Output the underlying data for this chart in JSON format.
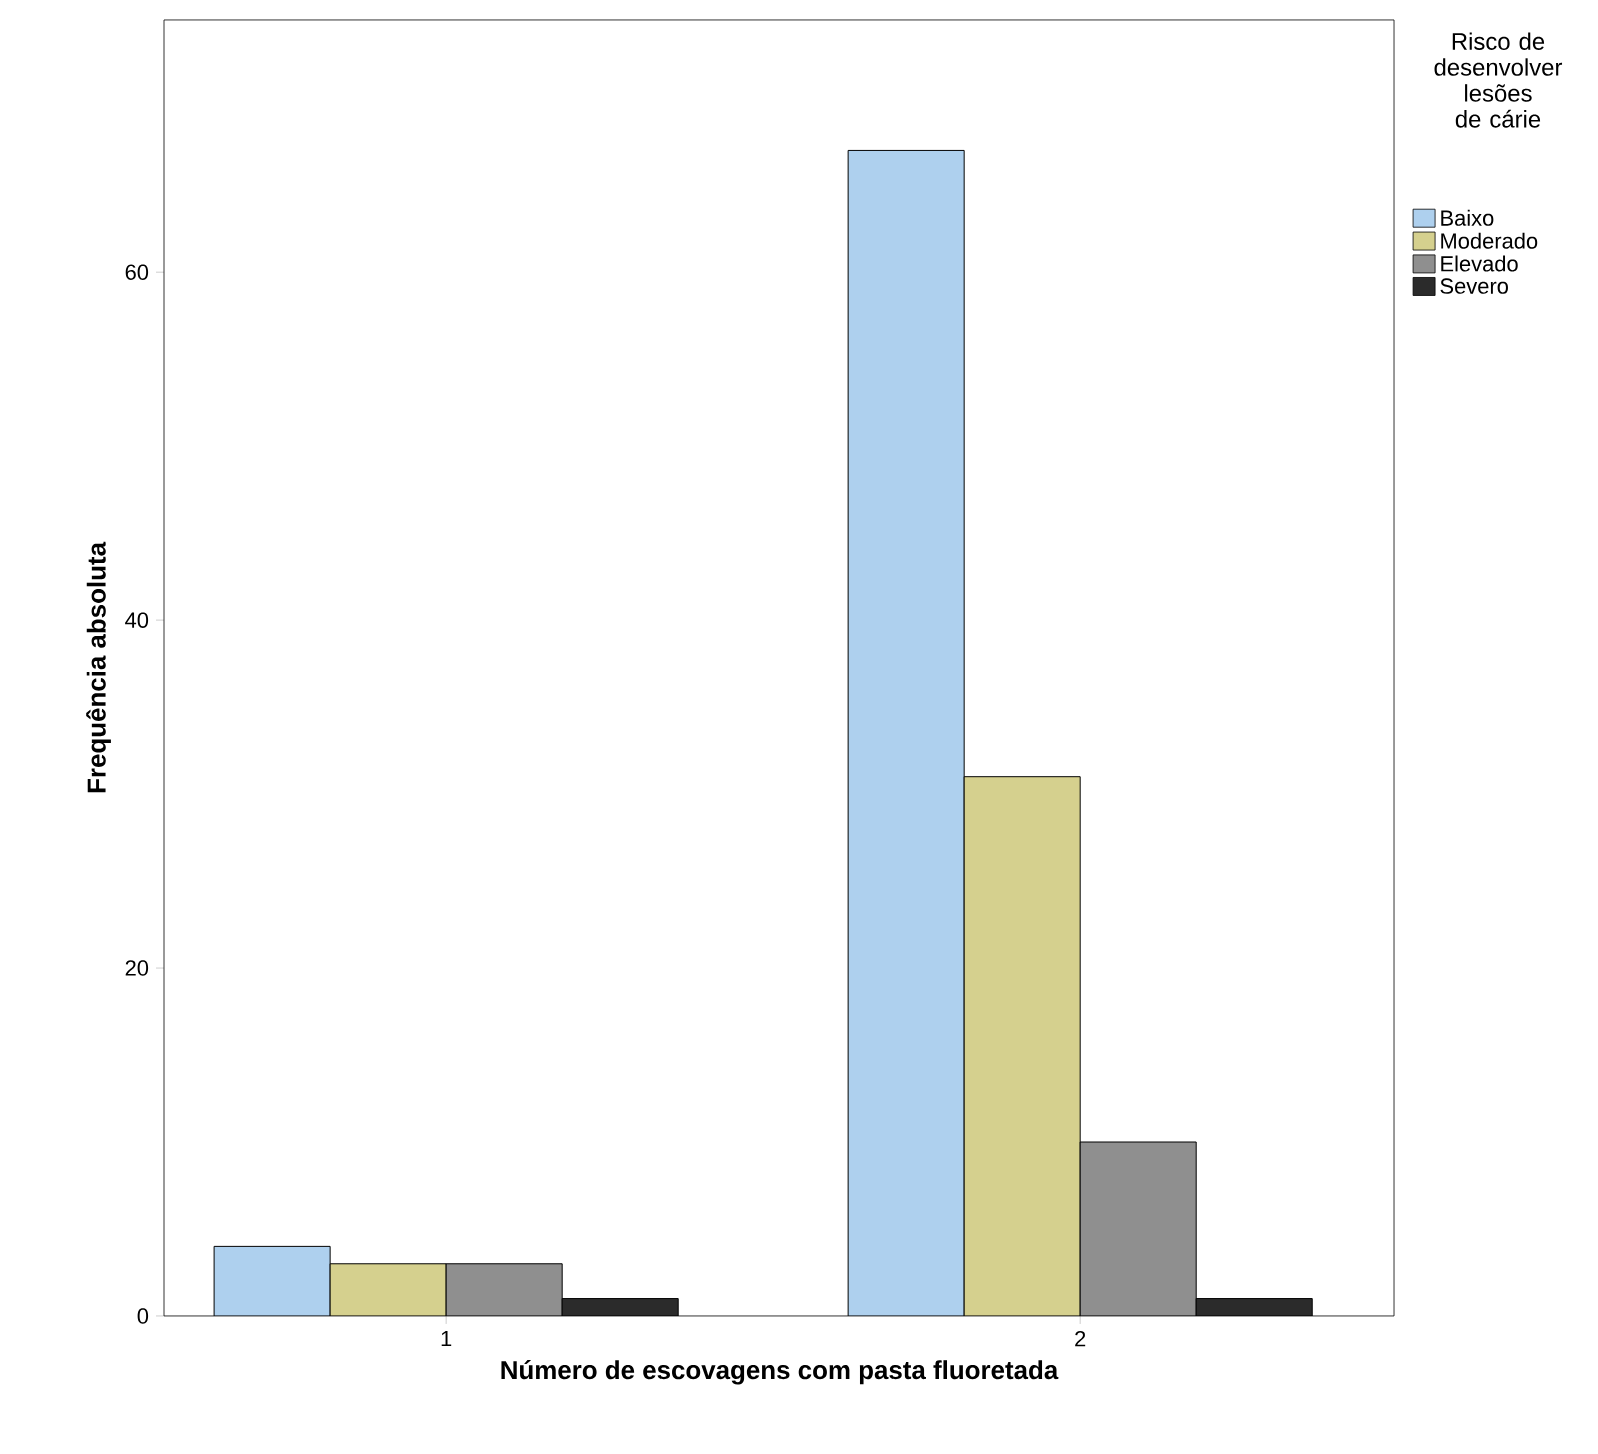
{
  "chart_data": {
    "type": "bar",
    "xlabel": "Número de escovagens com pasta fluoretada",
    "ylabel": "Frequência absoluta",
    "legend_title": "Risco de desenvolver lesões de cárie",
    "categories": [
      "1",
      "2"
    ],
    "series": [
      {
        "name": "Baixo",
        "color": "#aed0ee",
        "values": [
          4,
          67
        ]
      },
      {
        "name": "Moderado",
        "color": "#d5d08e",
        "values": [
          3,
          31
        ]
      },
      {
        "name": "Elevado",
        "color": "#8f8f8f",
        "values": [
          3,
          10
        ]
      },
      {
        "name": "Severo",
        "color": "#2b2b2b",
        "values": [
          1,
          1
        ]
      }
    ],
    "ylim": [
      0,
      74.5
    ],
    "yticks": [
      0,
      20,
      40,
      60
    ],
    "grid": false,
    "legend": "right"
  }
}
